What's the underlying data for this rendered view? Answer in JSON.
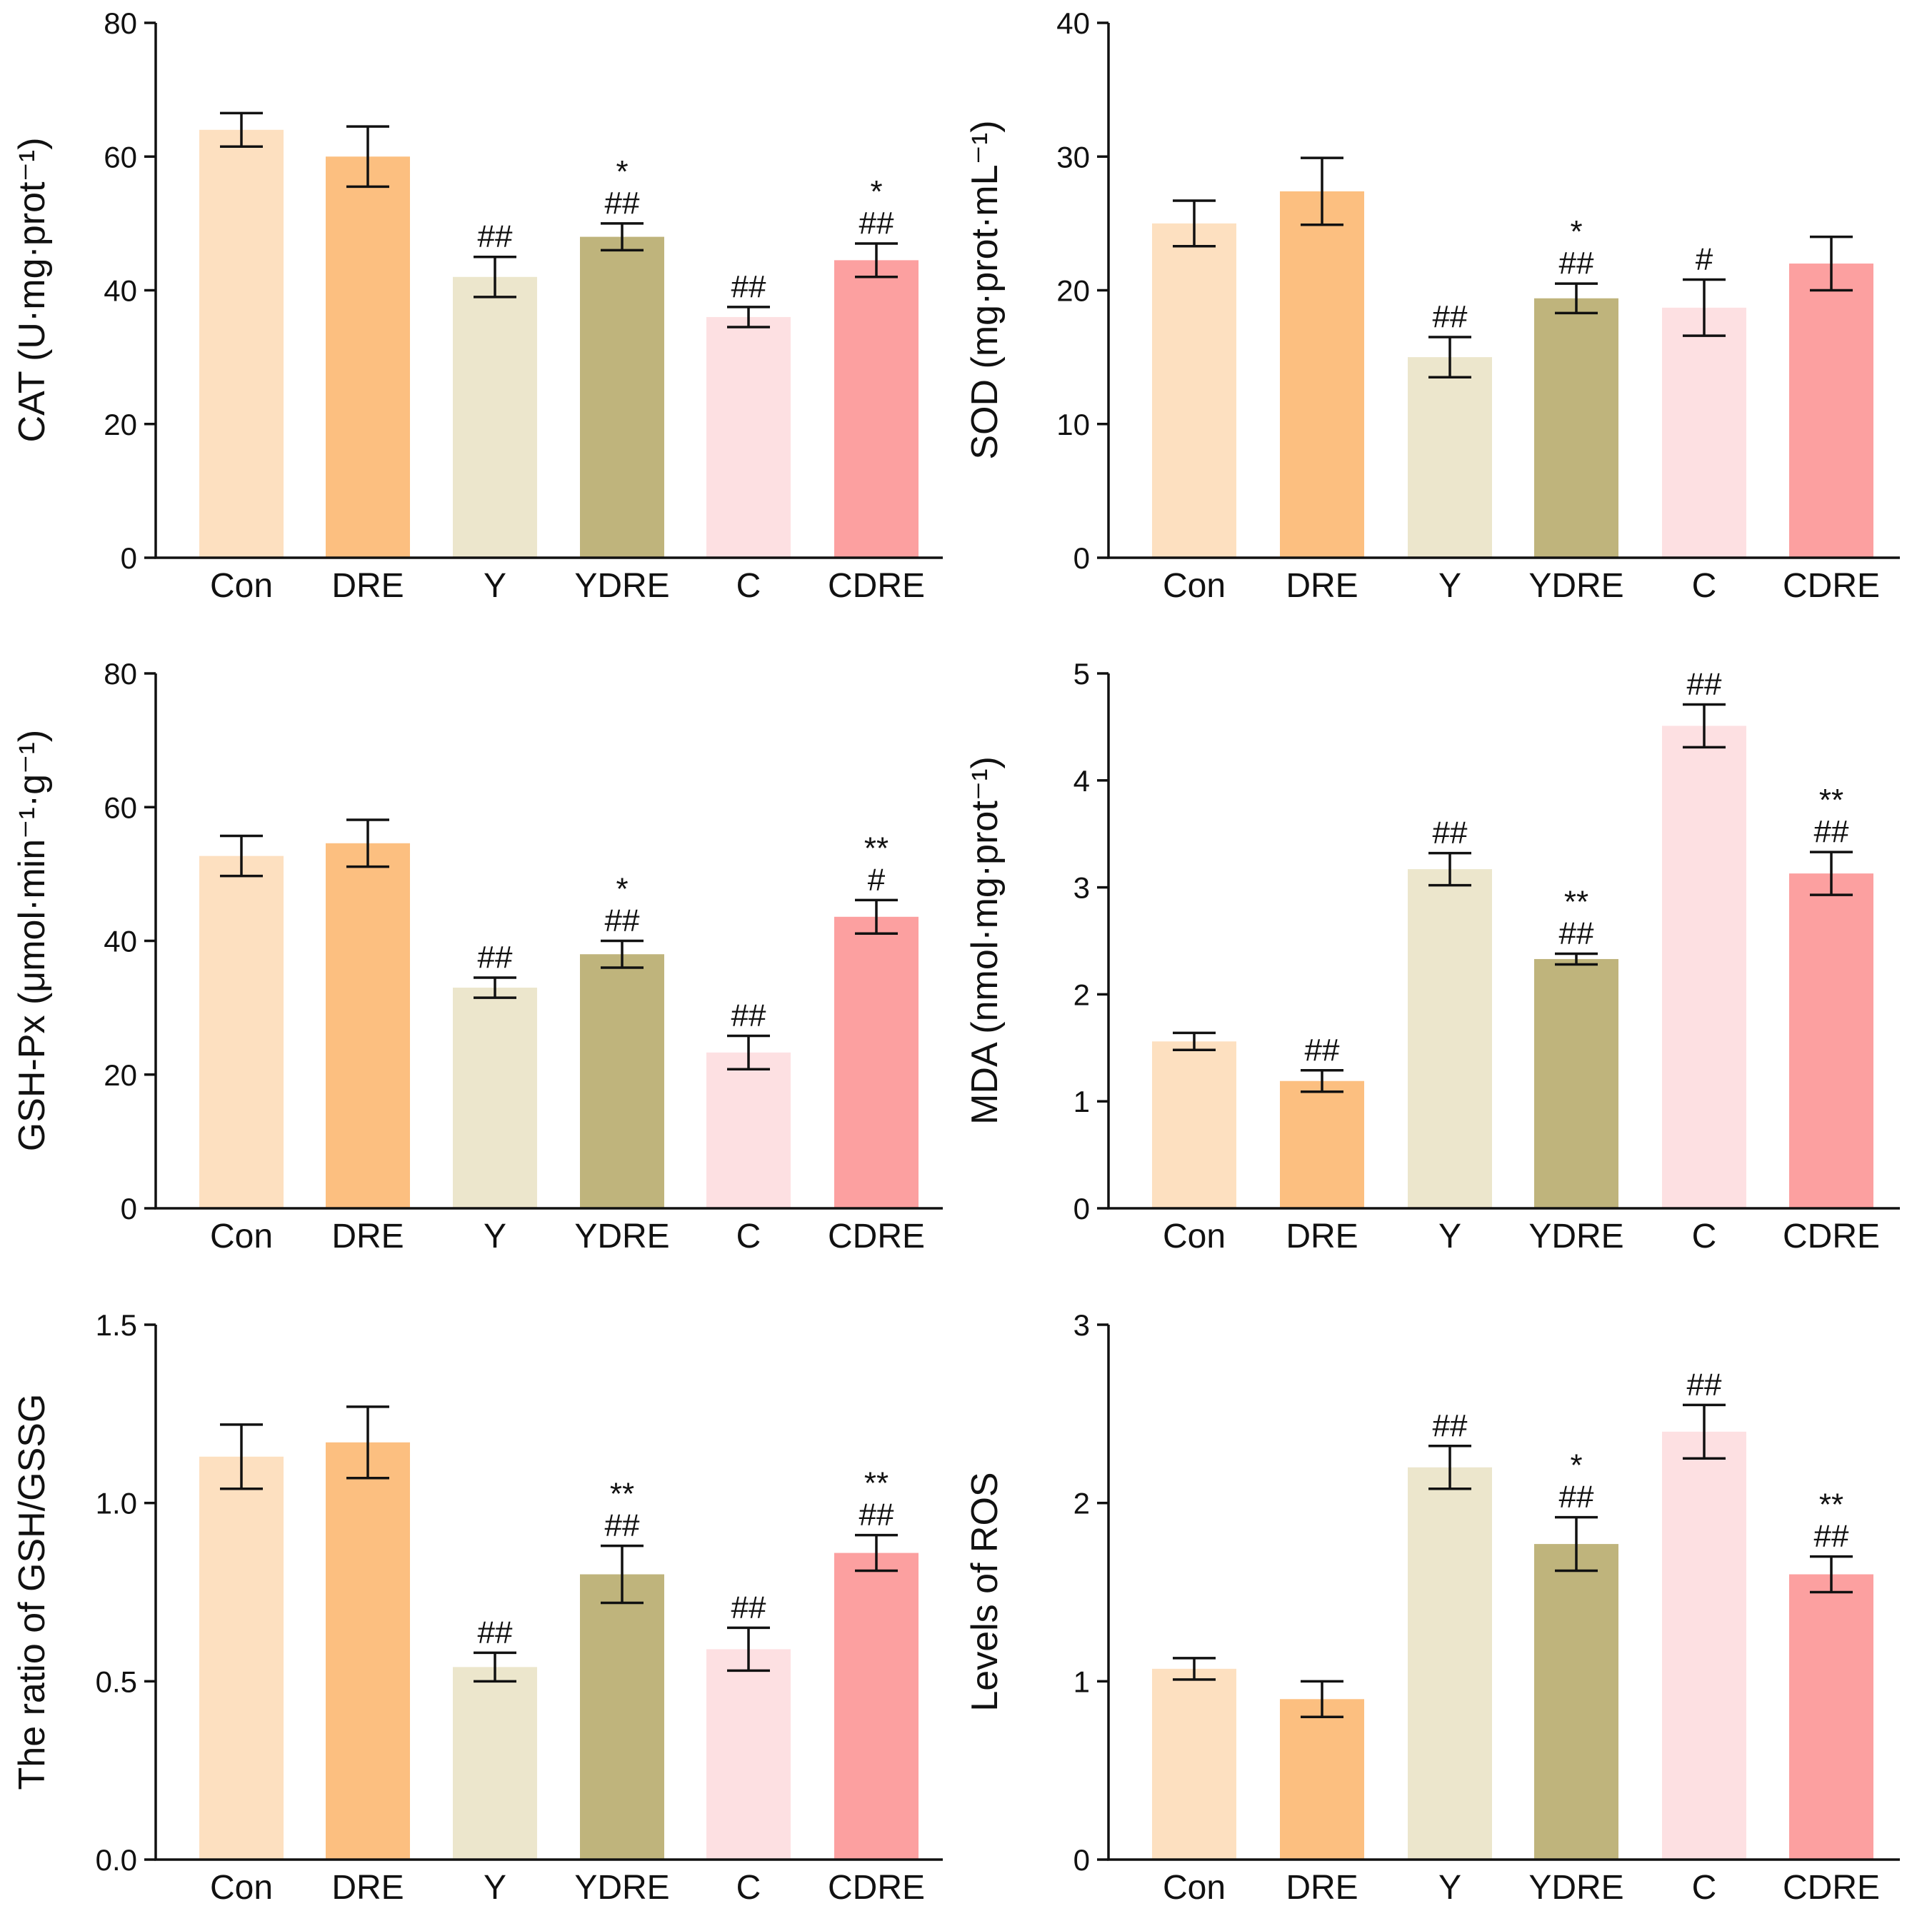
{
  "colors": {
    "Con": "#fde0c0",
    "DRE": "#fcbf80",
    "Y": "#ece6cc",
    "YDRE": "#bfb47c",
    "C": "#fde0e2",
    "CDRE": "#fca0a0"
  },
  "chart_data": [
    {
      "type": "bar",
      "title": "",
      "xlabel": "",
      "ylabel": "CAT (U·mg·prot⁻¹)",
      "ylim": [
        0,
        80
      ],
      "yticks": [
        0,
        20,
        40,
        60,
        80
      ],
      "ytick_labels": [
        "0",
        "20",
        "40",
        "60",
        "80"
      ],
      "categories": [
        "Con",
        "DRE",
        "Y",
        "YDRE",
        "C",
        "CDRE"
      ],
      "values": [
        64,
        60,
        42,
        48,
        36,
        44.5
      ],
      "errors": [
        2.5,
        4.5,
        3,
        2,
        1.5,
        2.5
      ],
      "annotations": [
        "",
        "",
        "##",
        "*\n##",
        "##",
        "*\n##"
      ]
    },
    {
      "type": "bar",
      "title": "",
      "xlabel": "",
      "ylabel": "SOD (mg·prot·mL⁻¹)",
      "ylim": [
        0,
        40
      ],
      "yticks": [
        0,
        10,
        20,
        30,
        40
      ],
      "ytick_labels": [
        "0",
        "10",
        "20",
        "30",
        "40"
      ],
      "categories": [
        "Con",
        "DRE",
        "Y",
        "YDRE",
        "C",
        "CDRE"
      ],
      "values": [
        25,
        27.4,
        15,
        19.4,
        18.7,
        22
      ],
      "errors": [
        1.7,
        2.5,
        1.5,
        1.1,
        2.1,
        2
      ],
      "annotations": [
        "",
        "",
        "##",
        "*\n##",
        "#",
        ""
      ]
    },
    {
      "type": "bar",
      "title": "",
      "xlabel": "",
      "ylabel": "GSH-Px (μmol·min⁻¹·g⁻¹)",
      "ylim": [
        0,
        80
      ],
      "yticks": [
        0,
        20,
        40,
        60,
        80
      ],
      "ytick_labels": [
        "0",
        "20",
        "40",
        "60",
        "80"
      ],
      "categories": [
        "Con",
        "DRE",
        "Y",
        "YDRE",
        "C",
        "CDRE"
      ],
      "values": [
        52.7,
        54.6,
        33,
        38,
        23.3,
        43.6
      ],
      "errors": [
        3,
        3.5,
        1.5,
        2,
        2.5,
        2.5
      ],
      "annotations": [
        "",
        "",
        "##",
        "*\n##",
        "##",
        "**\n#"
      ]
    },
    {
      "type": "bar",
      "title": "",
      "xlabel": "",
      "ylabel": "MDA (nmol·mg·prot⁻¹)",
      "ylim": [
        0,
        5
      ],
      "yticks": [
        0,
        1,
        2,
        3,
        4,
        5
      ],
      "ytick_labels": [
        "0",
        "1",
        "2",
        "3",
        "4",
        "5"
      ],
      "categories": [
        "Con",
        "DRE",
        "Y",
        "YDRE",
        "C",
        "CDRE"
      ],
      "values": [
        1.56,
        1.19,
        3.17,
        2.33,
        4.51,
        3.13
      ],
      "errors": [
        0.08,
        0.1,
        0.15,
        0.05,
        0.2,
        0.2
      ],
      "annotations": [
        "",
        "##",
        "##",
        "**\n##",
        "##",
        "**\n##"
      ]
    },
    {
      "type": "bar",
      "title": "",
      "xlabel": "",
      "ylabel": "The ratio of GSH/GSSG",
      "ylim": [
        0,
        1.5
      ],
      "yticks": [
        0,
        0.5,
        1.0,
        1.5
      ],
      "ytick_labels": [
        "0.0",
        "0.5",
        "1.0",
        "1.5"
      ],
      "categories": [
        "Con",
        "DRE",
        "Y",
        "YDRE",
        "C",
        "CDRE"
      ],
      "values": [
        1.13,
        1.17,
        0.54,
        0.8,
        0.59,
        0.86
      ],
      "errors": [
        0.09,
        0.1,
        0.04,
        0.08,
        0.06,
        0.05
      ],
      "annotations": [
        "",
        "",
        "##",
        "**\n##",
        "##",
        "**\n##"
      ]
    },
    {
      "type": "bar",
      "title": "",
      "xlabel": "",
      "ylabel": "Levels of ROS",
      "ylim": [
        0,
        3
      ],
      "yticks": [
        0,
        1,
        2,
        3
      ],
      "ytick_labels": [
        "0",
        "1",
        "2",
        "3"
      ],
      "categories": [
        "Con",
        "DRE",
        "Y",
        "YDRE",
        "C",
        "CDRE"
      ],
      "values": [
        1.07,
        0.9,
        2.2,
        1.77,
        2.4,
        1.6
      ],
      "errors": [
        0.06,
        0.1,
        0.12,
        0.15,
        0.15,
        0.1
      ],
      "annotations": [
        "",
        "",
        "##",
        "*\n##",
        "##",
        "**\n##"
      ]
    }
  ]
}
